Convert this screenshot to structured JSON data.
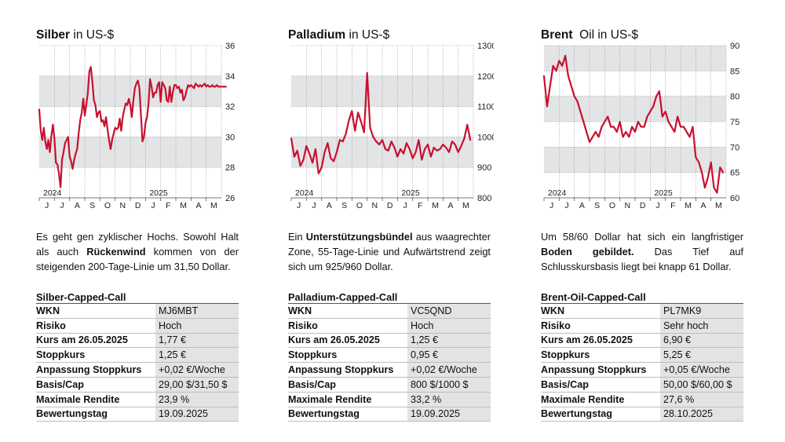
{
  "panels": [
    {
      "title_bold": "Silber",
      "title_rest": "in US-$",
      "description": {
        "before": "Es geht gen zyklischer Hochs. Sowohl Halt als auch ",
        "bold": "Rückenwind",
        "after": " kommen von der steigenden 200-Tage-Linie um 31,50 Dollar."
      },
      "table_title": "Silber-Capped-Call",
      "rows": [
        {
          "key": "WKN",
          "value": "MJ6MBT"
        },
        {
          "key": "Risiko",
          "value": "Hoch"
        },
        {
          "key": "Kurs am 26.05.2025",
          "value": "1,77 €"
        },
        {
          "key": "Stoppkurs",
          "value": "1,25 €"
        },
        {
          "key": "Anpassung Stoppkurs",
          "value": "+0,02 €/Woche"
        },
        {
          "key": "Basis/Cap",
          "value": "29,00 $/31,50 $"
        },
        {
          "key": "Maximale Rendite",
          "value": "23,9 %"
        },
        {
          "key": "Bewertungstag",
          "value": "19.09.2025"
        }
      ]
    },
    {
      "title_bold": "Palladium",
      "title_rest": "in US-$",
      "description": {
        "before": "Ein ",
        "bold": "Unterstützungsbündel",
        "after": " aus waagrechter Zone, 55-Tage-Linie und Aufwärtstrend zeigt sich um 925/960 Dollar."
      },
      "table_title": "Palladium-Capped-Call",
      "rows": [
        {
          "key": "WKN",
          "value": "VC5QND"
        },
        {
          "key": "Risiko",
          "value": "Hoch"
        },
        {
          "key": "Kurs am 26.05.2025",
          "value": "1,25 €"
        },
        {
          "key": "Stoppkurs",
          "value": "0,95 €"
        },
        {
          "key": "Anpassung Stoppkurs",
          "value": "+0,02 €/Woche"
        },
        {
          "key": "Basis/Cap",
          "value": "800 $/1000 $"
        },
        {
          "key": "Maximale Rendite",
          "value": "33,2 %"
        },
        {
          "key": "Bewertungstag",
          "value": "19.09.2025"
        }
      ]
    },
    {
      "title_bold": "Brent",
      "title_rest": "Oil in US-$",
      "description": {
        "before": "Um 58/60 Dollar hat sich ein langfristiger ",
        "bold": "Boden gebildet.",
        "after": " Das Tief auf Schlusskursbasis liegt bei knapp 61 Dollar."
      },
      "table_title": "Brent-Oil-Capped-Call",
      "rows": [
        {
          "key": "WKN",
          "value": "PL7MK9"
        },
        {
          "key": "Risiko",
          "value": "Sehr hoch"
        },
        {
          "key": "Kurs am 26.05.2025",
          "value": "6,90 €"
        },
        {
          "key": "Stoppkurs",
          "value": "5,25 €"
        },
        {
          "key": "Anpassung Stoppkurs",
          "value": "+0,05 €/Woche"
        },
        {
          "key": "Basis/Cap",
          "value": "50,00 $/60,00 $"
        },
        {
          "key": "Maximale Rendite",
          "value": "27,6 %"
        },
        {
          "key": "Bewertungstag",
          "value": "28.10.2025"
        }
      ]
    }
  ],
  "chart_data": [
    {
      "type": "line",
      "title": "Silber in US-$",
      "line_color": "#c8102e",
      "band_color": "#e3e4e6",
      "grid": true,
      "ylim": [
        26,
        36
      ],
      "yticks": [
        26,
        28,
        30,
        32,
        34,
        36
      ],
      "bands": [
        [
          28,
          30
        ],
        [
          32,
          34
        ]
      ],
      "x_months": [
        "J",
        "J",
        "A",
        "S",
        "O",
        "N",
        "D",
        "J",
        "F",
        "M",
        "A",
        "M"
      ],
      "year_labels": [
        {
          "label": "2024",
          "month_index": 0
        },
        {
          "label": "2025",
          "month_index": 7
        }
      ],
      "x": [
        0.0,
        0.1,
        0.2,
        0.3,
        0.4,
        0.5,
        0.6,
        0.7,
        0.8,
        0.9,
        1.0,
        1.1,
        1.2,
        1.3,
        1.4,
        1.5,
        1.6,
        1.7,
        1.8,
        1.9,
        2.0,
        2.1,
        2.2,
        2.3,
        2.4,
        2.5,
        2.6,
        2.7,
        2.8,
        2.9,
        3.0,
        3.1,
        3.2,
        3.3,
        3.4,
        3.5,
        3.6,
        3.7,
        3.8,
        3.9,
        4.0,
        4.1,
        4.2,
        4.3,
        4.4,
        4.5,
        4.6,
        4.7,
        4.8,
        4.9,
        5.0,
        5.1,
        5.2,
        5.3,
        5.4,
        5.5,
        5.6,
        5.7,
        5.8,
        5.9,
        6.0,
        6.1,
        6.2,
        6.3,
        6.4,
        6.5,
        6.6,
        6.7,
        6.8,
        6.9,
        7.0,
        7.1,
        7.2,
        7.3,
        7.4,
        7.5,
        7.6,
        7.7,
        7.8,
        7.9,
        8.0,
        8.1,
        8.2,
        8.3,
        8.4,
        8.5,
        8.6,
        8.7,
        8.8,
        8.9,
        9.0,
        9.1,
        9.2,
        9.3,
        9.4,
        9.5,
        9.6,
        9.7,
        9.8,
        9.9,
        10.0,
        10.1,
        10.2,
        10.3,
        10.4,
        10.5,
        10.6,
        10.7,
        10.8,
        10.9,
        11.0,
        11.1,
        11.2,
        11.3,
        11.4,
        11.5,
        11.6,
        11.7,
        11.8,
        11.9,
        12.0,
        12.1,
        12.2,
        12.3
      ],
      "values": [
        31.8,
        30.4,
        29.8,
        30.6,
        29.7,
        29.2,
        29.8,
        29.0,
        30.1,
        30.8,
        29.9,
        28.3,
        28.2,
        27.6,
        26.7,
        28.5,
        29.0,
        29.6,
        29.8,
        30.0,
        28.7,
        28.4,
        27.9,
        28.5,
        28.9,
        29.2,
        30.3,
        31.1,
        31.6,
        32.5,
        31.4,
        32.1,
        32.9,
        34.3,
        34.6,
        33.6,
        32.4,
        32.1,
        31.3,
        31.6,
        31.7,
        31.0,
        31.1,
        30.7,
        31.3,
        30.5,
        29.8,
        29.2,
        29.8,
        30.2,
        30.6,
        30.5,
        30.6,
        31.2,
        30.4,
        31.3,
        31.8,
        32.2,
        32.1,
        32.5,
        32.1,
        31.3,
        32.4,
        33.2,
        33.5,
        33.7,
        33.2,
        31.5,
        29.7,
        30.0,
        30.9,
        31.3,
        32.2,
        33.8,
        33.3,
        32.6,
        32.9,
        32.9,
        33.4,
        33.6,
        32.3,
        33.6,
        33.4,
        33.2,
        32.4,
        32.3,
        33.3,
        32.3,
        32.9,
        33.4,
        33.4,
        33.2,
        33.3,
        32.9,
        33.1,
        32.4,
        32.6,
        33.0,
        33.4,
        33.3,
        33.4,
        33.3,
        33.2,
        33.5,
        33.4,
        33.3,
        33.4,
        33.3,
        33.4,
        33.5,
        33.3,
        33.4,
        33.3,
        33.3,
        33.4,
        33.3,
        33.3,
        33.4,
        33.3,
        33.3,
        33.3,
        33.3,
        33.3,
        33.3
      ]
    },
    {
      "type": "line",
      "title": "Palladium in US-$",
      "line_color": "#c8102e",
      "band_color": "#e3e4e6",
      "grid": true,
      "ylim": [
        800,
        1300
      ],
      "yticks": [
        800,
        900,
        1000,
        1100,
        1200,
        1300
      ],
      "bands": [
        [
          900,
          1000
        ],
        [
          1100,
          1200
        ]
      ],
      "x_months": [
        "J",
        "J",
        "A",
        "S",
        "O",
        "N",
        "D",
        "J",
        "F",
        "M",
        "A",
        "M"
      ],
      "year_labels": [
        {
          "label": "2024",
          "month_index": 0
        },
        {
          "label": "2025",
          "month_index": 7
        }
      ],
      "x": [
        0.0,
        0.2,
        0.4,
        0.6,
        0.8,
        1.0,
        1.2,
        1.4,
        1.6,
        1.8,
        2.0,
        2.2,
        2.4,
        2.6,
        2.8,
        3.0,
        3.2,
        3.4,
        3.6,
        3.8,
        4.0,
        4.2,
        4.4,
        4.6,
        4.8,
        5.0,
        5.2,
        5.4,
        5.6,
        5.8,
        6.0,
        6.2,
        6.4,
        6.6,
        6.8,
        7.0,
        7.2,
        7.4,
        7.6,
        7.8,
        8.0,
        8.2,
        8.4,
        8.6,
        8.8,
        9.0,
        9.2,
        9.4,
        9.6,
        9.8,
        10.0,
        10.2,
        10.4,
        10.6,
        10.8,
        11.0,
        11.2,
        11.4,
        11.6,
        11.8
      ],
      "values": [
        995,
        935,
        955,
        905,
        925,
        970,
        945,
        915,
        960,
        880,
        900,
        950,
        980,
        930,
        920,
        950,
        990,
        985,
        1010,
        1055,
        1085,
        1020,
        1080,
        1050,
        1015,
        1210,
        1030,
        1000,
        985,
        975,
        990,
        960,
        955,
        985,
        965,
        935,
        960,
        945,
        980,
        960,
        930,
        950,
        990,
        925,
        960,
        975,
        935,
        965,
        955,
        960,
        975,
        965,
        950,
        985,
        975,
        950,
        970,
        995,
        1040,
        990
      ]
    },
    {
      "type": "line",
      "title": "Brent Oil in US-$",
      "line_color": "#c8102e",
      "band_color": "#e3e4e6",
      "grid": true,
      "ylim": [
        60,
        90
      ],
      "yticks": [
        60,
        65,
        70,
        75,
        80,
        85,
        90
      ],
      "bands": [
        [
          65,
          70
        ],
        [
          75,
          80
        ],
        [
          85,
          90
        ]
      ],
      "x_months": [
        "J",
        "J",
        "A",
        "S",
        "O",
        "N",
        "D",
        "J",
        "F",
        "M",
        "A",
        "M"
      ],
      "year_labels": [
        {
          "label": "2024",
          "month_index": 0
        },
        {
          "label": "2025",
          "month_index": 7
        }
      ],
      "x": [
        0.0,
        0.2,
        0.4,
        0.6,
        0.8,
        1.0,
        1.2,
        1.4,
        1.6,
        1.8,
        2.0,
        2.2,
        2.4,
        2.6,
        2.8,
        3.0,
        3.2,
        3.4,
        3.6,
        3.8,
        4.0,
        4.2,
        4.4,
        4.6,
        4.8,
        5.0,
        5.2,
        5.4,
        5.6,
        5.8,
        6.0,
        6.2,
        6.4,
        6.6,
        6.8,
        7.0,
        7.2,
        7.4,
        7.6,
        7.8,
        8.0,
        8.2,
        8.4,
        8.6,
        8.8,
        9.0,
        9.2,
        9.4,
        9.6,
        9.8,
        10.0,
        10.2,
        10.4,
        10.6,
        10.8,
        11.0,
        11.2,
        11.4,
        11.6,
        11.8
      ],
      "values": [
        84,
        78,
        82,
        86,
        85,
        87,
        86,
        88,
        84,
        82,
        80,
        79,
        77,
        75,
        73,
        71,
        72,
        73,
        72,
        74,
        75,
        76,
        74,
        74,
        73,
        75,
        72,
        73,
        72,
        74,
        73,
        75,
        74,
        74,
        76,
        77,
        78,
        80,
        81,
        76,
        77,
        75,
        74,
        73,
        76,
        74,
        74,
        73,
        72,
        74,
        68,
        67,
        65,
        62,
        64,
        67,
        62,
        61,
        66,
        65
      ]
    }
  ]
}
